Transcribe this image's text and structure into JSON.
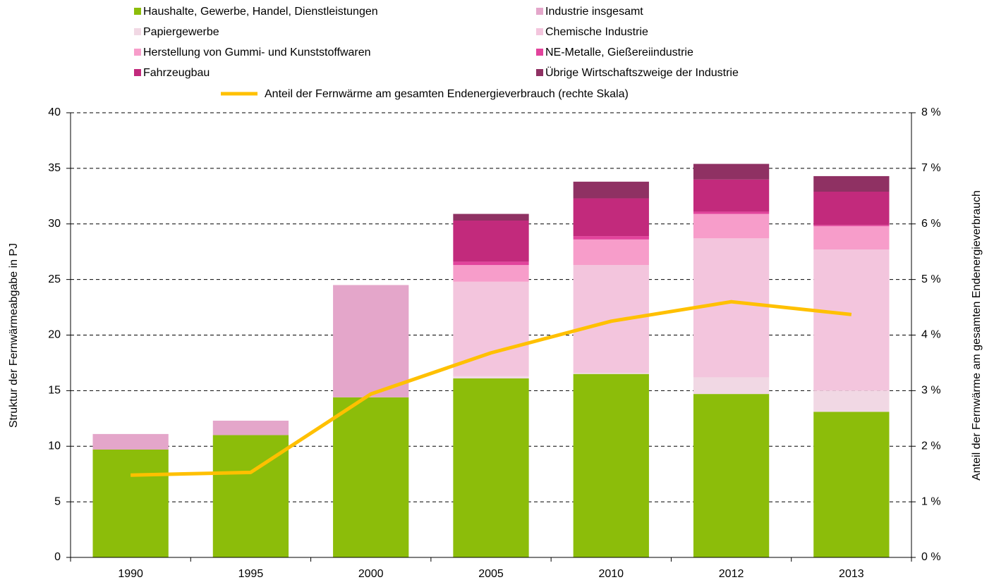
{
  "chart_data": {
    "type": "bar",
    "categories": [
      "1990",
      "1995",
      "2000",
      "2005",
      "2010",
      "2012",
      "2013"
    ],
    "y_label": "Struktur der Fernwärmeabgabe in PJ",
    "y2_label": "Anteil der Fernwärme am gesamten Endenergieverbrauch",
    "ylim": [
      0,
      40
    ],
    "yticks": [
      0,
      5,
      10,
      15,
      20,
      25,
      30,
      35,
      40
    ],
    "y2lim": [
      0,
      8
    ],
    "y2ticks": [
      {
        "value": 0,
        "label": "0 %"
      },
      {
        "value": 1,
        "label": "1 %"
      },
      {
        "value": 2,
        "label": "2 %"
      },
      {
        "value": 3,
        "label": "3 %"
      },
      {
        "value": 4,
        "label": "4 %"
      },
      {
        "value": 5,
        "label": "5 %"
      },
      {
        "value": 6,
        "label": "6 %"
      },
      {
        "value": 7,
        "label": "7 %"
      },
      {
        "value": 8,
        "label": "8 %"
      }
    ],
    "grid": true,
    "series": [
      {
        "name": "Haushalte, Gewerbe, Handel, Dienstleistungen",
        "color": "#8cbd0a",
        "values": [
          9.7,
          11.0,
          14.4,
          16.1,
          16.5,
          14.7,
          13.1
        ]
      },
      {
        "name": "Industrie insgesamt",
        "color": "#e4a6ca",
        "values": [
          1.4,
          1.3,
          10.1,
          null,
          null,
          null,
          null
        ]
      },
      {
        "name": "Papiergewerbe",
        "color": "#f1d8e4",
        "values": [
          null,
          null,
          null,
          0.2,
          0.1,
          1.5,
          1.9
        ]
      },
      {
        "name": "Chemische Industrie",
        "color": "#f3c5dd",
        "values": [
          null,
          null,
          null,
          8.5,
          9.7,
          12.5,
          12.7
        ]
      },
      {
        "name": "Herstellung von Gummi- und Kunststoffwaren",
        "color": "#f79dca",
        "values": [
          null,
          null,
          null,
          1.5,
          2.3,
          2.2,
          2.1
        ]
      },
      {
        "name": "NE-Metalle, Gießereiindustrie",
        "color": "#e2439c",
        "values": [
          null,
          null,
          null,
          0.3,
          0.3,
          0.2,
          0.1
        ]
      },
      {
        "name": "Fahrzeugbau",
        "color": "#c22a7c",
        "values": [
          null,
          null,
          null,
          3.7,
          3.4,
          2.9,
          3.0
        ]
      },
      {
        "name": "Übrige Wirtschaftszweige der Industrie",
        "color": "#8f3163",
        "values": [
          null,
          null,
          null,
          0.6,
          1.5,
          1.4,
          1.4
        ]
      },
      {
        "name": "Anteil der Fernwärme am gesamten Endenergieverbrauch (rechte Skala)",
        "color": "#ffc000",
        "type": "line",
        "axis": "y2",
        "values": [
          1.48,
          1.53,
          2.94,
          3.68,
          4.25,
          4.6,
          4.37
        ]
      }
    ]
  }
}
